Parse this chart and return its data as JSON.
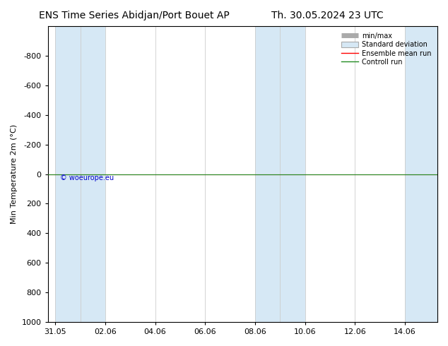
{
  "title_left": "ENS Time Series Abidjan/Port Bouet AP",
  "title_right": "Th. 30.05.2024 23 UTC",
  "ylabel": "Min Temperature 2m (°C)",
  "ylim_top": -1000,
  "ylim_bottom": 1000,
  "yticks": [
    -800,
    -600,
    -400,
    -200,
    0,
    200,
    400,
    600,
    800,
    1000
  ],
  "xtick_labels": [
    "31.05",
    "02.06",
    "04.06",
    "06.06",
    "08.06",
    "10.06",
    "12.06",
    "14.06"
  ],
  "xtick_positions": [
    0,
    2,
    4,
    6,
    8,
    10,
    12,
    14
  ],
  "xlim": [
    -0.3,
    15.3
  ],
  "shaded_columns": [
    [
      0,
      1
    ],
    [
      1,
      2
    ],
    [
      8,
      9
    ],
    [
      9,
      10
    ],
    [
      14,
      15.3
    ]
  ],
  "shade_color": "#d6e8f5",
  "vertical_line_positions": [
    0,
    1,
    2,
    4,
    6,
    8,
    9,
    10,
    12,
    14
  ],
  "ensemble_mean_y": 0.0,
  "control_run_y": 0.0,
  "ensemble_mean_color": "#ff0000",
  "control_run_color": "#228B22",
  "watermark": "© woeurope.eu",
  "watermark_color": "#0000cc",
  "bg_color": "#ffffff",
  "grid_color": "#cccccc",
  "title_fontsize": 10,
  "axis_fontsize": 8,
  "tick_fontsize": 8
}
